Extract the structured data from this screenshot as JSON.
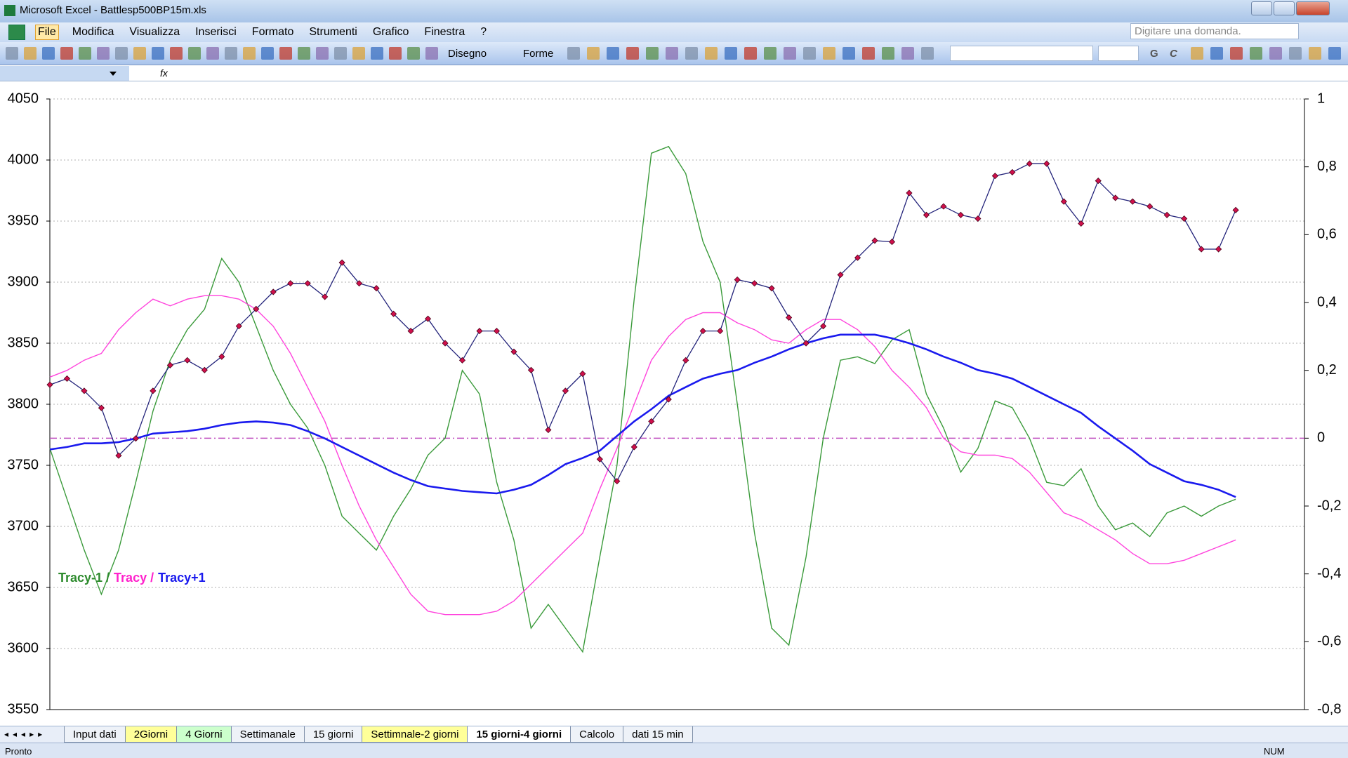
{
  "window": {
    "title": "Microsoft Excel - Battlesp500BP15m.xls"
  },
  "menu": [
    "File",
    "Modifica",
    "Visualizza",
    "Inserisci",
    "Formato",
    "Strumenti",
    "Grafico",
    "Finestra",
    "?"
  ],
  "help_box": "Digitare una domanda.",
  "toolbar": {
    "drawing": "Disegno",
    "shapes": "Forme",
    "format_buttons": [
      "G",
      "C"
    ]
  },
  "formula_bar": {
    "fx": "fx"
  },
  "chart_data": {
    "type": "line",
    "ylim": [
      3550,
      4050
    ],
    "yticks": [
      3550,
      3600,
      3650,
      3700,
      3750,
      3800,
      3850,
      3900,
      3950,
      4000,
      4050
    ],
    "y2lim": [
      -0.8,
      1
    ],
    "y2ticks": [
      {
        "value": -0.8,
        "label": "-0,8"
      },
      {
        "value": -0.6,
        "label": "-0,6"
      },
      {
        "value": -0.4,
        "label": "-0,4"
      },
      {
        "value": -0.2,
        "label": "-0,2"
      },
      0,
      {
        "value": 0.2,
        "label": "0,2"
      },
      {
        "value": 0.4,
        "label": "0,4"
      },
      {
        "value": 0.6,
        "label": "0,6"
      },
      {
        "value": 0.8,
        "label": "0,8"
      },
      1
    ],
    "grid": true,
    "series": [
      {
        "color": "#3a9a3a",
        "axis": "y2",
        "values": [
          -0.03,
          -0.18,
          -0.33,
          -0.46,
          -0.33,
          -0.13,
          0.08,
          0.23,
          0.32,
          0.38,
          0.53,
          0.46,
          0.33,
          0.2,
          0.1,
          0.03,
          -0.08,
          -0.23,
          -0.28,
          -0.33,
          -0.23,
          -0.15,
          -0.05,
          0,
          0.2,
          0.13,
          -0.13,
          -0.3,
          -0.56,
          -0.49,
          -0.56,
          -0.63,
          -0.35,
          -0.08,
          0.41,
          0.84,
          0.86,
          0.78,
          0.58,
          0.46,
          0.1,
          -0.28,
          -0.56,
          -0.61,
          -0.35,
          0,
          0.23,
          0.24,
          0.22,
          0.29,
          0.32,
          0.13,
          0.03,
          -0.1,
          -0.03,
          0.11,
          0.09,
          0,
          -0.13,
          -0.14,
          -0.09,
          -0.2,
          -0.27,
          -0.25,
          -0.29,
          -0.22,
          -0.2,
          -0.23,
          -0.2,
          -0.18
        ]
      },
      {
        "color": "#ff44dd",
        "axis": "y2",
        "values": [
          0.18,
          0.2,
          0.23,
          0.25,
          0.32,
          0.37,
          0.41,
          0.39,
          0.41,
          0.42,
          0.42,
          0.41,
          0.38,
          0.33,
          0.25,
          0.15,
          0.05,
          -0.08,
          -0.2,
          -0.3,
          -0.38,
          -0.46,
          -0.51,
          -0.52,
          -0.52,
          -0.52,
          -0.51,
          -0.48,
          -0.43,
          -0.38,
          -0.33,
          -0.28,
          -0.15,
          -0.03,
          0.1,
          0.23,
          0.3,
          0.35,
          0.37,
          0.37,
          0.34,
          0.32,
          0.29,
          0.28,
          0.32,
          0.35,
          0.35,
          0.32,
          0.27,
          0.2,
          0.15,
          0.09,
          0,
          -0.04,
          -0.05,
          -0.05,
          -0.06,
          -0.1,
          -0.16,
          -0.22,
          -0.24,
          -0.27,
          -0.3,
          -0.34,
          -0.37,
          -0.37,
          -0.36,
          -0.34,
          -0.32,
          -0.3
        ]
      },
      {
        "color": "#1a1aee",
        "values": [
          3763,
          3765,
          3768,
          3768,
          3769,
          3772,
          3776,
          3777,
          3778,
          3780,
          3783,
          3785,
          3786,
          3785,
          3783,
          3778,
          3772,
          3765,
          3758,
          3751,
          3744,
          3738,
          3733,
          3731,
          3729,
          3728,
          3727,
          3730,
          3734,
          3742,
          3751,
          3756,
          3762,
          3774,
          3786,
          3796,
          3807,
          3814,
          3821,
          3825,
          3828,
          3834,
          3839,
          3845,
          3850,
          3854,
          3857,
          3857,
          3857,
          3854,
          3850,
          3845,
          3839,
          3834,
          3828,
          3825,
          3821,
          3814,
          3807,
          3800,
          3793,
          3782,
          3772,
          3762,
          3751,
          3744,
          3737,
          3734,
          3730,
          3724
        ]
      },
      {
        "color": "#23237a",
        "marker_color": "#d0104c",
        "values": [
          3816,
          3821,
          3811,
          3797,
          3758,
          3772,
          3811,
          3832,
          3836,
          3828,
          3839,
          3864,
          3878,
          3892,
          3899,
          3899,
          3888,
          3916,
          3899,
          3895,
          3874,
          3860,
          3870,
          3850,
          3836,
          3860,
          3860,
          3843,
          3828,
          3779,
          3811,
          3825,
          3755,
          3737,
          3765,
          3786,
          3804,
          3836,
          3860,
          3860,
          3902,
          3899,
          3895,
          3871,
          3850,
          3864,
          3906,
          3920,
          3934,
          3933,
          3973,
          3955,
          3962,
          3955,
          3952,
          3987,
          3990,
          3997,
          3997,
          3966,
          3948,
          3983,
          3969,
          3966,
          3962,
          3955,
          3952,
          3927,
          3927,
          3959
        ]
      }
    ],
    "reference_line": {
      "value": 0,
      "axis": "y2",
      "color": "#c050c0"
    },
    "annotation": [
      {
        "text": "Tracy-1 /",
        "color": "#2e8b2e"
      },
      {
        "text": "Tracy /",
        "color": "#ff22cc"
      },
      {
        "text": "Tracy+1",
        "color": "#1a1aee"
      }
    ]
  },
  "sheet_tabs": [
    {
      "name": "Input dati"
    },
    {
      "name": "2Giorni",
      "color": "#ffff99"
    },
    {
      "name": "4 Giorni",
      "color": "#ccffcc"
    },
    {
      "name": "Settimanale"
    },
    {
      "name": "15 giorni"
    },
    {
      "name": "Settimnale-2 giorni",
      "color": "#ffff99"
    },
    {
      "name": "15 giorni-4 giorni",
      "active": true
    },
    {
      "name": "Calcolo"
    },
    {
      "name": "dati 15 min"
    }
  ],
  "status_bar": {
    "left": "Pronto",
    "right": "NUM"
  }
}
